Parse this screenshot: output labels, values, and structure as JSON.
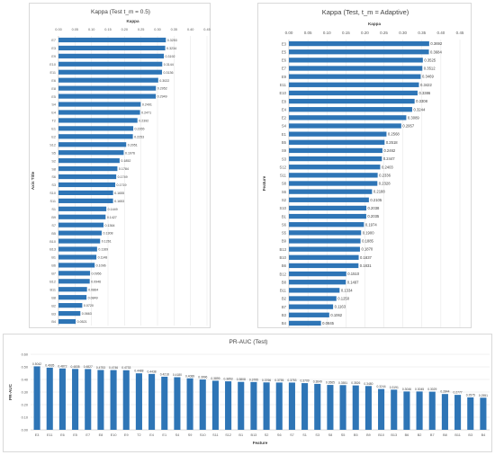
{
  "chart_data": [
    {
      "type": "bar",
      "orientation": "horizontal",
      "title": "Kappa (Test t_m = 0.5)",
      "xlabel": "Kappa",
      "ylabel": "Axis Title",
      "xlim": [
        0,
        0.45
      ],
      "xticks": [
        "0.00",
        "0.05",
        "0.10",
        "0.15",
        "0.20",
        "0.25",
        "0.30",
        "0.35",
        "0.40",
        "0.45"
      ],
      "grid": true,
      "color": "#2e75b6",
      "categories": [
        "E7",
        "E3",
        "E9",
        "E10",
        "E11",
        "E6",
        "E8",
        "E5",
        "S4",
        "E4",
        "T2",
        "E1",
        "E2",
        "S12",
        "S5",
        "S2",
        "S8",
        "S6",
        "S3",
        "S10",
        "S11",
        "S1",
        "B9",
        "S7",
        "B5",
        "B10",
        "B13",
        "B1",
        "B6",
        "B7",
        "B12",
        "B11",
        "B8",
        "B2",
        "B3",
        "B4"
      ],
      "values": [
        0.3253,
        0.3234,
        0.3192,
        0.3144,
        0.3136,
        0.3022,
        0.2952,
        0.2949,
        0.2491,
        0.2471,
        0.2392,
        0.2265,
        0.2253,
        0.2051,
        0.1976,
        0.1852,
        0.1784,
        0.1749,
        0.1719,
        0.1655,
        0.1653,
        0.1449,
        0.1427,
        0.1364,
        0.1308,
        0.1261,
        0.1169,
        0.1148,
        0.1096,
        0.0956,
        0.0946,
        0.0864,
        0.0849,
        0.072,
        0.0663,
        0.0521
      ],
      "labels": [
        "0.3253",
        "0.3234",
        "0.3192",
        "0.3144",
        "0.3136",
        "0.3022",
        "0.2952",
        "0.2949",
        "0.2491",
        "0.2471",
        "0.2392",
        "0.2265",
        "0.2253",
        "0.2051",
        "0.1976",
        "0.1852",
        "0.1784",
        "0.1749",
        "0.1719",
        "0.1655",
        "0.1653",
        "0.1449",
        "0.1427",
        "0.1364",
        "0.1308",
        "0.1261",
        "0.1169",
        "0.1148",
        "0.1096",
        "0.0956",
        "0.0946",
        "0.0864",
        "0.0849",
        "0.0720",
        "0.0663",
        "0.0521"
      ]
    },
    {
      "type": "bar",
      "orientation": "horizontal",
      "title": "Kappa (Test, t_m = Adaptive)",
      "xlabel": "Kappa",
      "ylabel": "Feature",
      "xlim": [
        0,
        0.45
      ],
      "xticks": [
        "0.00",
        "0.05",
        "0.10",
        "0.15",
        "0.20",
        "0.25",
        "0.30",
        "0.35",
        "0.40",
        "0.45"
      ],
      "grid": true,
      "color": "#2e75b6",
      "categories": [
        "E3",
        "E5",
        "E6",
        "E7",
        "E9",
        "E11",
        "E10",
        "E8",
        "E4",
        "E2",
        "S4",
        "E1",
        "B5",
        "S9",
        "S3",
        "S12",
        "S11",
        "S8",
        "S6",
        "S2",
        "S10",
        "B1",
        "S6",
        "S5",
        "B9",
        "B13",
        "B10",
        "B6",
        "B12",
        "B8",
        "B11",
        "B2",
        "B7",
        "B3",
        "B4"
      ],
      "values": [
        0.3692,
        0.3684,
        0.3525,
        0.3512,
        0.3469,
        0.3422,
        0.3386,
        0.3308,
        0.3244,
        0.3089,
        0.2957,
        0.2568,
        0.2518,
        0.2462,
        0.2447,
        0.2403,
        0.2336,
        0.2328,
        0.2188,
        0.2105,
        0.2038,
        0.2035,
        0.1974,
        0.19,
        0.1885,
        0.187,
        0.1837,
        0.1831,
        0.151,
        0.1497,
        0.1334,
        0.125,
        0.1163,
        0.1062,
        0.0845
      ],
      "labels": [
        "0.3692",
        "0.3684",
        "0.3525",
        "0.3512",
        "0.3469",
        "0.3422",
        "0.3386",
        "0.3308",
        "0.3244",
        "0.3089",
        "0.2957",
        "0.2568",
        "0.2518",
        "0.2462",
        "0.2447",
        "0.2403",
        "0.2336",
        "0.2328",
        "0.2188",
        "0.2105",
        "0.2038",
        "0.2035",
        "0.1974",
        "0.1900",
        "0.1885",
        "0.1870",
        "0.1837",
        "0.1831",
        "0.1510",
        "0.1497",
        "0.1334",
        "0.1250",
        "0.1163",
        "0.1062",
        "0.0845"
      ]
    },
    {
      "type": "bar",
      "orientation": "vertical",
      "title": "PR-AUC (Test)",
      "xlabel": "Feature",
      "ylabel": "PR-AUC",
      "ylim": [
        0,
        0.6
      ],
      "yticks": [
        "0.00",
        "0.10",
        "0.20",
        "0.30",
        "0.40",
        "0.50",
        "0.60"
      ],
      "grid": true,
      "color": "#2e75b6",
      "categories": [
        "E3",
        "E11",
        "E6",
        "E5",
        "E7",
        "E8",
        "E10",
        "E9",
        "T2",
        "E4",
        "E1",
        "S4",
        "S9",
        "S10",
        "S11",
        "S12",
        "B1",
        "B13",
        "S2",
        "S6",
        "S7",
        "S1",
        "S3",
        "S8",
        "S5",
        "B5",
        "B9",
        "B10",
        "B13",
        "B6",
        "B2",
        "B7",
        "B8",
        "B11",
        "B3",
        "B4"
      ],
      "values": [
        0.5042,
        0.4935,
        0.4872,
        0.4835,
        0.4827,
        0.4753,
        0.4746,
        0.4733,
        0.4488,
        0.4438,
        0.4218,
        0.418,
        0.4089,
        0.3996,
        0.3899,
        0.3853,
        0.3808,
        0.3795,
        0.3766,
        0.3755,
        0.3753,
        0.3709,
        0.3649,
        0.3565,
        0.3551,
        0.3526,
        0.348,
        0.3244,
        0.3191,
        0.3046,
        0.3045,
        0.3029,
        0.2844,
        0.2777,
        0.2575,
        0.2551
      ],
      "labels": [
        "0.5042",
        "0.4935",
        "0.4872",
        "0.4835",
        "0.4827",
        "0.4753",
        "0.4746",
        "0.4733",
        "0.4488",
        "0.4438",
        "0.4218",
        "0.4180",
        "0.4089",
        "0.3996",
        "0.3899",
        "0.3853",
        "0.3808",
        "0.3795",
        "0.3766",
        "0.3755",
        "0.3753",
        "0.3709",
        "0.3649",
        "0.3565",
        "0.3551",
        "0.3526",
        "0.3480",
        "0.3244",
        "0.3191",
        "0.3046",
        "0.3045",
        "0.3029",
        "0.2844",
        "0.2777",
        "0.2575",
        "0.2551"
      ]
    }
  ]
}
